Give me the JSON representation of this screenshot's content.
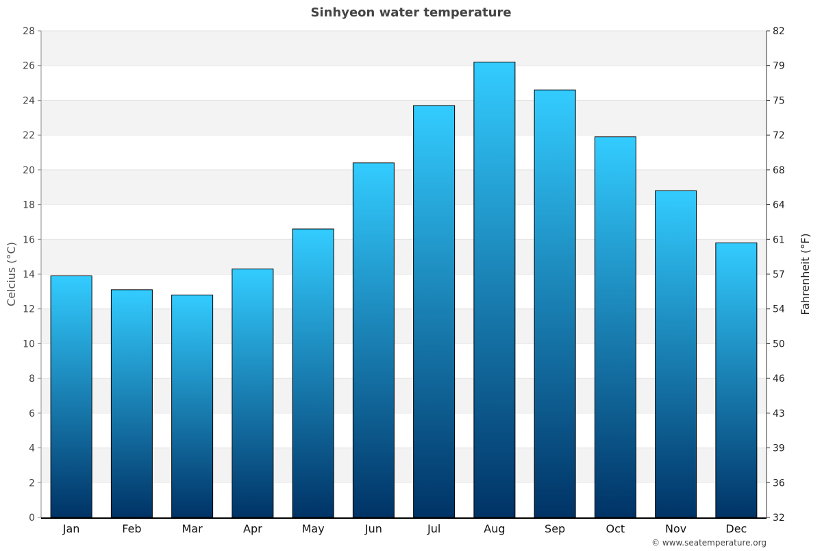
{
  "chart_data": {
    "type": "bar",
    "title": "Sinhyeon water temperature",
    "ylabel": "Celcius (°C)",
    "ylabel_right": "Fahrenheit (°F)",
    "categories": [
      "Jan",
      "Feb",
      "Mar",
      "Apr",
      "May",
      "Jun",
      "Jul",
      "Aug",
      "Sep",
      "Oct",
      "Nov",
      "Dec"
    ],
    "values": [
      13.9,
      13.1,
      12.8,
      14.3,
      16.6,
      20.4,
      23.7,
      26.2,
      24.6,
      21.9,
      18.8,
      15.8
    ],
    "ylim": [
      0,
      28
    ],
    "yticks": [
      0,
      2,
      4,
      6,
      8,
      10,
      12,
      14,
      16,
      18,
      20,
      22,
      24,
      26,
      28
    ],
    "yticks_right": [
      "32",
      "36",
      "39",
      "43",
      "46",
      "50",
      "54",
      "57",
      "61",
      "64",
      "68",
      "72",
      "75",
      "79",
      "82"
    ],
    "grid": true,
    "legend": "none",
    "colors": {
      "bar_top": "#33ccff",
      "bar_bottom": "#003366",
      "band": "#f3f3f3"
    }
  },
  "credit": "© www.seatemperature.org"
}
